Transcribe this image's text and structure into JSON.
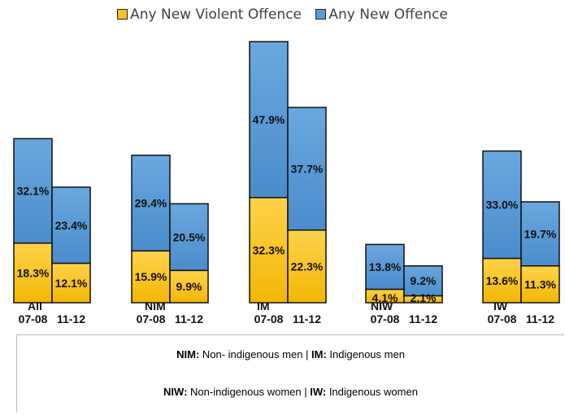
{
  "chart_data": {
    "type": "bar",
    "stacked": true,
    "legend": {
      "position": "top-center",
      "items": [
        {
          "label": "Any New Violent Offence",
          "color": "#f5c224"
        },
        {
          "label": "Any New Offence",
          "color": "#5b9bd5"
        }
      ]
    },
    "groups": [
      {
        "name": "All",
        "periods": [
          "07-08",
          "11-12"
        ],
        "violent": [
          18.3,
          12.1
        ],
        "other": [
          32.1,
          23.4
        ]
      },
      {
        "name": "NIM",
        "periods": [
          "07-08",
          "11-12"
        ],
        "violent": [
          15.9,
          9.9
        ],
        "other": [
          29.4,
          20.5
        ]
      },
      {
        "name": "IM",
        "periods": [
          "07-08",
          "11-12"
        ],
        "violent": [
          32.3,
          22.3
        ],
        "other": [
          47.9,
          37.7
        ]
      },
      {
        "name": "NIW",
        "periods": [
          "07-08",
          "11-12"
        ],
        "violent": [
          4.1,
          2.1
        ],
        "other": [
          13.8,
          9.2
        ]
      },
      {
        "name": "IW",
        "periods": [
          "07-08",
          "11-12"
        ],
        "violent": [
          13.6,
          11.3
        ],
        "other": [
          33.0,
          19.7
        ]
      }
    ],
    "value_suffix": "%",
    "ylim": [
      0,
      80
    ],
    "grid": false
  },
  "notes": [
    [
      {
        "bold": "NIM:",
        "text": " Non- indigenous men | "
      },
      {
        "bold": "IM:",
        "text": " Indigenous men"
      }
    ],
    [
      {
        "bold": "NIW:",
        "text": " Non-indigenous women | "
      },
      {
        "bold": "IW:",
        "text": " Indigenous women"
      }
    ]
  ]
}
